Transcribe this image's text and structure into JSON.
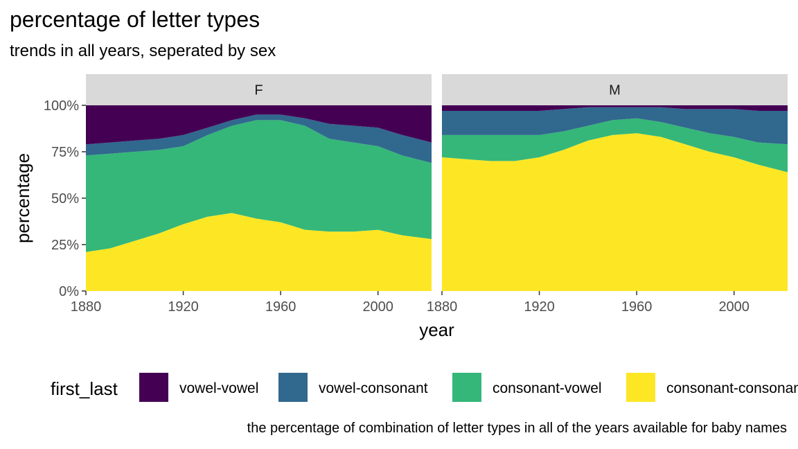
{
  "title": "percentage of letter types",
  "subtitle": "trends in all years, seperated by sex",
  "caption": "the percentage of combination of letter types in all of the years available for baby names",
  "chart_data": {
    "type": "area",
    "stacked": true,
    "normalized": true,
    "xlabel": "year",
    "ylabel": "percentage",
    "xlim": [
      1880,
      2022
    ],
    "ylim": [
      0,
      1
    ],
    "x_ticks": [
      1880,
      1920,
      1960,
      2000
    ],
    "y_ticks": [
      0,
      0.25,
      0.5,
      0.75,
      1
    ],
    "y_tick_labels": [
      "0%",
      "25%",
      "50%",
      "75%",
      "100%"
    ],
    "grid": false,
    "legend": {
      "title": "first_last",
      "position": "bottom",
      "entries": [
        {
          "label": "vowel-vowel",
          "color": "#440154"
        },
        {
          "label": "vowel-consonant",
          "color": "#31688E"
        },
        {
          "label": "consonant-vowel",
          "color": "#35B779"
        },
        {
          "label": "consonant-consonant",
          "color": "#FDE725"
        }
      ]
    },
    "stack_order_bottom_to_top": [
      "consonant-consonant",
      "consonant-vowel",
      "vowel-consonant",
      "vowel-vowel"
    ],
    "x": [
      1880,
      1890,
      1900,
      1910,
      1920,
      1930,
      1940,
      1950,
      1960,
      1970,
      1980,
      1990,
      2000,
      2010,
      2022
    ],
    "facets": [
      {
        "label": "F",
        "series": [
          {
            "name": "consonant-consonant",
            "values": [
              0.21,
              0.23,
              0.27,
              0.31,
              0.36,
              0.4,
              0.42,
              0.39,
              0.37,
              0.33,
              0.32,
              0.32,
              0.33,
              0.3,
              0.28
            ]
          },
          {
            "name": "consonant-vowel",
            "values": [
              0.52,
              0.51,
              0.48,
              0.45,
              0.42,
              0.44,
              0.47,
              0.53,
              0.55,
              0.56,
              0.5,
              0.48,
              0.45,
              0.43,
              0.41
            ]
          },
          {
            "name": "vowel-consonant",
            "values": [
              0.06,
              0.06,
              0.06,
              0.06,
              0.06,
              0.04,
              0.03,
              0.03,
              0.03,
              0.04,
              0.08,
              0.09,
              0.1,
              0.11,
              0.11
            ]
          },
          {
            "name": "vowel-vowel",
            "values": [
              0.21,
              0.2,
              0.19,
              0.18,
              0.16,
              0.12,
              0.08,
              0.05,
              0.05,
              0.07,
              0.1,
              0.11,
              0.12,
              0.16,
              0.2
            ]
          }
        ]
      },
      {
        "label": "M",
        "series": [
          {
            "name": "consonant-consonant",
            "values": [
              0.72,
              0.71,
              0.7,
              0.7,
              0.72,
              0.76,
              0.81,
              0.84,
              0.85,
              0.83,
              0.79,
              0.75,
              0.72,
              0.68,
              0.64
            ]
          },
          {
            "name": "consonant-vowel",
            "values": [
              0.12,
              0.13,
              0.14,
              0.14,
              0.12,
              0.1,
              0.08,
              0.08,
              0.08,
              0.08,
              0.09,
              0.1,
              0.11,
              0.12,
              0.15
            ]
          },
          {
            "name": "vowel-consonant",
            "values": [
              0.13,
              0.13,
              0.13,
              0.13,
              0.13,
              0.12,
              0.1,
              0.07,
              0.06,
              0.08,
              0.1,
              0.13,
              0.15,
              0.17,
              0.18
            ]
          },
          {
            "name": "vowel-vowel",
            "values": [
              0.03,
              0.03,
              0.03,
              0.03,
              0.03,
              0.02,
              0.01,
              0.01,
              0.01,
              0.01,
              0.02,
              0.02,
              0.02,
              0.03,
              0.03
            ]
          }
        ]
      }
    ]
  }
}
